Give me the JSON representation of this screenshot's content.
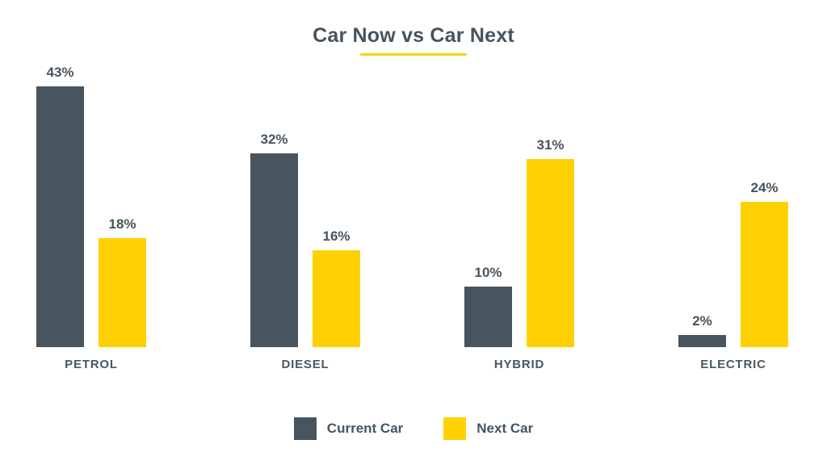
{
  "title": "Car Now vs Car Next",
  "colors": {
    "current_car": "#48545e",
    "next_car": "#ffd103",
    "text": "#47545e",
    "background": "#ffffff",
    "title_underline": "#ffd103"
  },
  "chart_data": {
    "type": "bar",
    "title": "Car Now vs Car Next",
    "categories": [
      "PETROL",
      "DIESEL",
      "HYBRID",
      "ELECTRIC"
    ],
    "series": [
      {
        "name": "Current Car",
        "color": "#48545e",
        "values": [
          43,
          32,
          10,
          2
        ]
      },
      {
        "name": "Next Car",
        "color": "#ffd103",
        "values": [
          18,
          16,
          31,
          24
        ]
      }
    ],
    "value_suffix": "%",
    "data_labels": true,
    "xlabel": "",
    "ylabel": "",
    "ylim": [
      0,
      43
    ],
    "grid": false,
    "axis_lines": false,
    "legend_position": "bottom"
  },
  "legend": {
    "items": [
      {
        "label": "Current Car",
        "color": "#48545e"
      },
      {
        "label": "Next Car",
        "color": "#ffd103"
      }
    ]
  }
}
